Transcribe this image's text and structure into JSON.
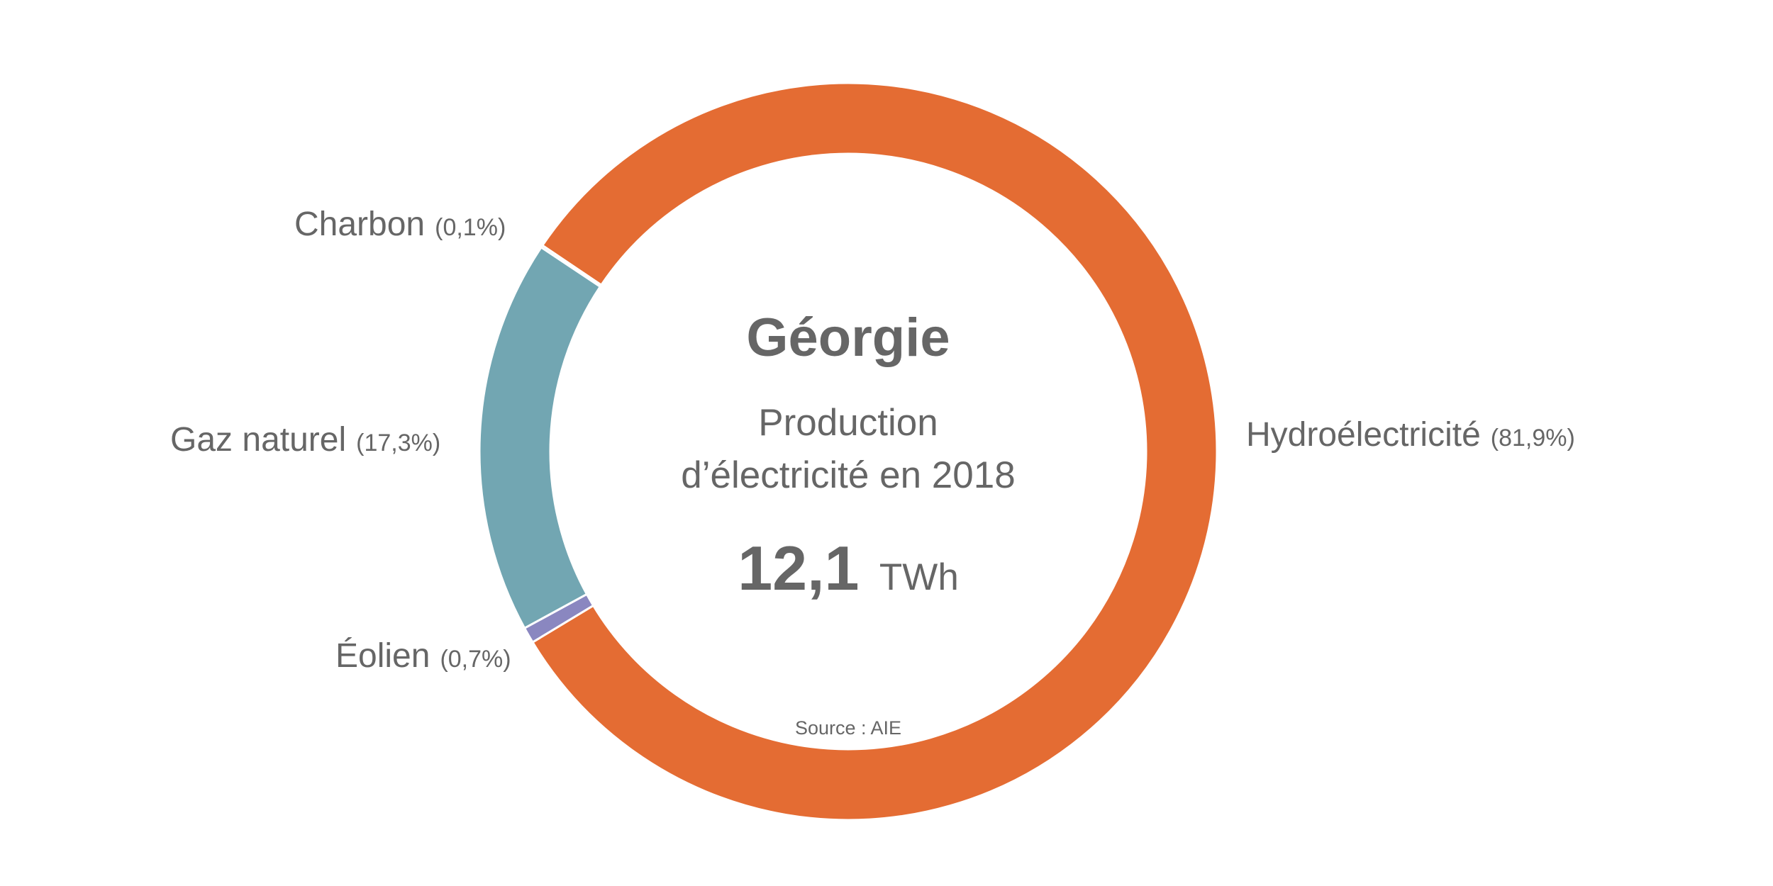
{
  "chart_data": {
    "type": "pie",
    "title": "Géorgie",
    "subtitle_line1": "Production",
    "subtitle_line2": "d’électricité en 2018",
    "total_value": "12,1",
    "total_unit": "TWh",
    "source": "Source : AIE",
    "slices": [
      {
        "name": "Hydroélectricité",
        "value": 81.9,
        "pct_label": "(81,9%)",
        "color": "#E46C33"
      },
      {
        "name": "Éolien",
        "value": 0.7,
        "pct_label": "(0,7%)",
        "color": "#8A87C0"
      },
      {
        "name": "Gaz naturel",
        "value": 17.3,
        "pct_label": "(17,3%)",
        "color": "#72A6B2"
      },
      {
        "name": "Charbon",
        "value": 0.1,
        "pct_label": "(0,1%)",
        "color": "#8CC7D8"
      }
    ]
  }
}
